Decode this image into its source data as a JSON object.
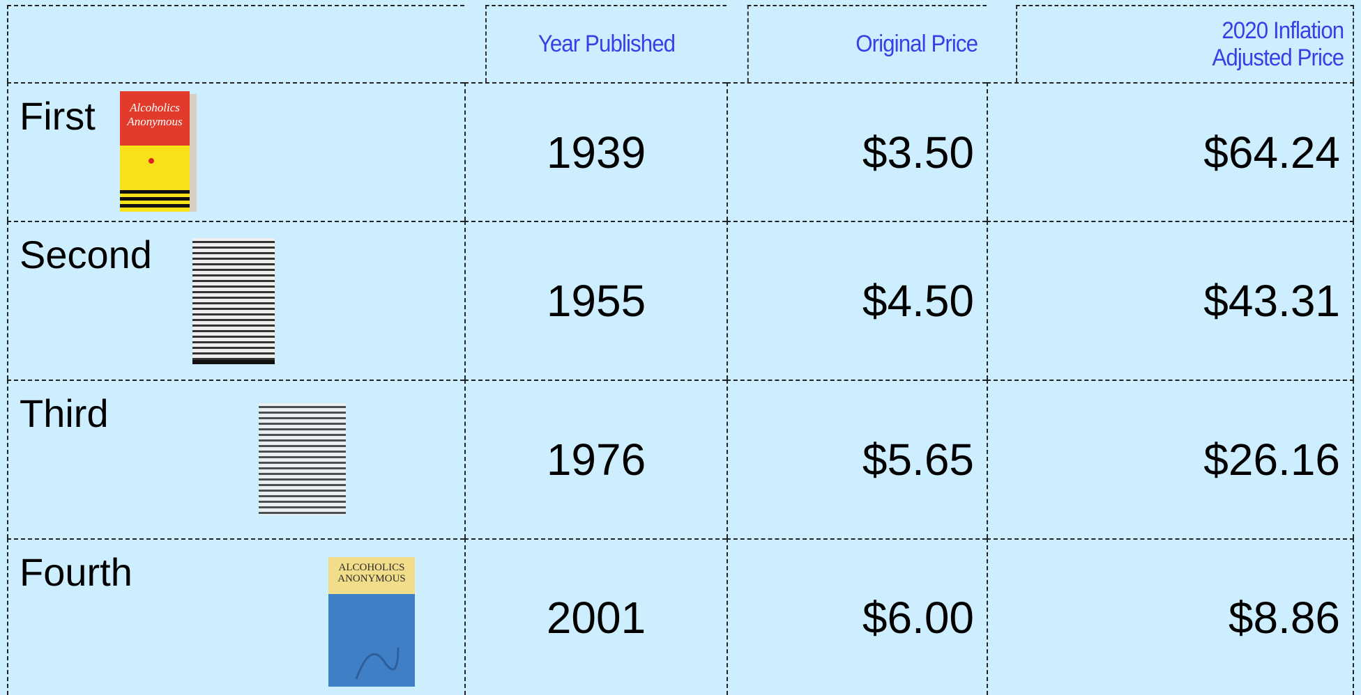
{
  "table": {
    "header": [
      "Year Published",
      "Original Price",
      "2020 Inflation Adjusted Price"
    ],
    "rows": [
      {
        "edition": "First",
        "cover": "Alcoholics Anonymous",
        "year": "1939",
        "original": "$3.50",
        "adjusted": "$64.24"
      },
      {
        "edition": "Second",
        "year": "1955",
        "original": "$4.50",
        "adjusted": "$43.31"
      },
      {
        "edition": "Third",
        "year": "1976",
        "original": "$5.65",
        "adjusted": "$26.16"
      },
      {
        "edition": "Fourth",
        "cover": "ALCOHOLICS ANONYMOUS",
        "year": "2001",
        "original": "$6.00",
        "adjusted": "$8.86"
      }
    ]
  }
}
